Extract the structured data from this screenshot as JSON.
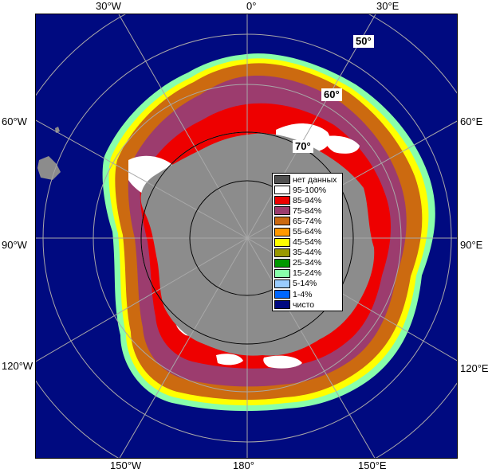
{
  "map": {
    "longitude_labels": {
      "top": [
        "30°W",
        "0°",
        "30°E"
      ],
      "left": [
        "60°W",
        "90°W",
        "120°W"
      ],
      "right": [
        "60°E",
        "90°E",
        "120°E"
      ],
      "bottom": [
        "150°W",
        "180°",
        "150°E"
      ]
    },
    "latitude_labels": [
      "50°",
      "60°",
      "70°"
    ],
    "colors": {
      "ocean": "#000a80",
      "land_nodata": "#8c8c8c",
      "graticule": "#a8a8a8",
      "frame": "#000000"
    }
  },
  "legend": {
    "items": [
      {
        "label": "нет данных",
        "color": "#505050"
      },
      {
        "label": "95-100%",
        "color": "#ffffff"
      },
      {
        "label": "85-94%",
        "color": "#ee0000"
      },
      {
        "label": "75-84%",
        "color": "#9c3c6e"
      },
      {
        "label": "65-74%",
        "color": "#cc6a10"
      },
      {
        "label": "55-64%",
        "color": "#ff9900"
      },
      {
        "label": "45-54%",
        "color": "#ffff00"
      },
      {
        "label": "35-44%",
        "color": "#999900"
      },
      {
        "label": "25-34%",
        "color": "#009900"
      },
      {
        "label": "15-24%",
        "color": "#88ffaa"
      },
      {
        "label": "5-14%",
        "color": "#99ccff"
      },
      {
        "label": "1-4%",
        "color": "#0066ff"
      },
      {
        "label": "чисто",
        "color": "#000a80"
      }
    ]
  }
}
